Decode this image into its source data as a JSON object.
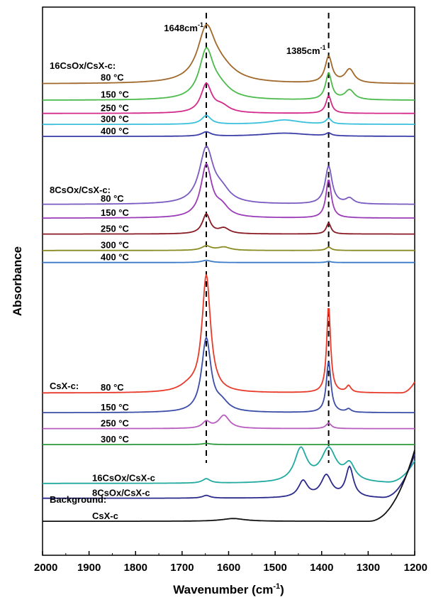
{
  "chart_data": {
    "type": "line",
    "xlabel": "Wavenumber (cm",
    "xlabel_sup": "-1",
    "xlabel_tail": ")",
    "ylabel": "Absorbance",
    "xlim": [
      2000,
      1200
    ],
    "x_reversed": true,
    "x_ticks": [
      2000,
      1900,
      1800,
      1700,
      1600,
      1500,
      1400,
      1300,
      1200
    ],
    "y_ticks_shown": false,
    "grid": false,
    "reference_lines": [
      {
        "x": 1648,
        "label": "1648cm",
        "sup": "-1"
      },
      {
        "x": 1385,
        "label": "1385cm",
        "sup": "-1"
      }
    ],
    "groups": [
      {
        "label": "16CsOx/CsX-c:",
        "series": [
          {
            "name": "80 °C",
            "color": "#a0682a",
            "baseline": 0.86,
            "peaks": [
              {
                "x": 1648,
                "h": 0.089,
                "w": 22
              },
              {
                "x": 1620,
                "h": 0.028,
                "w": 40
              },
              {
                "x": 1385,
                "h": 0.048,
                "w": 9
              },
              {
                "x": 1340,
                "h": 0.025,
                "w": 12
              }
            ]
          },
          {
            "name": "150 °C",
            "color": "#4cba4c",
            "baseline": 0.83,
            "peaks": [
              {
                "x": 1648,
                "h": 0.085,
                "w": 18
              },
              {
                "x": 1620,
                "h": 0.02,
                "w": 30
              },
              {
                "x": 1385,
                "h": 0.048,
                "w": 8
              },
              {
                "x": 1340,
                "h": 0.018,
                "w": 12
              }
            ]
          },
          {
            "name": "250 °C",
            "color": "#d42a8c",
            "baseline": 0.806,
            "peaks": [
              {
                "x": 1648,
                "h": 0.052,
                "w": 14
              },
              {
                "x": 1615,
                "h": 0.012,
                "w": 20
              },
              {
                "x": 1385,
                "h": 0.032,
                "w": 7
              }
            ]
          },
          {
            "name": "300 °C",
            "color": "#3ac0dc",
            "baseline": 0.786,
            "peaks": [
              {
                "x": 1648,
                "h": 0.016,
                "w": 12
              },
              {
                "x": 1480,
                "h": 0.008,
                "w": 40
              },
              {
                "x": 1385,
                "h": 0.01,
                "w": 7
              }
            ]
          },
          {
            "name": "400 °C",
            "color": "#3a3fa8",
            "baseline": 0.764,
            "peaks": [
              {
                "x": 1648,
                "h": 0.008,
                "w": 12
              },
              {
                "x": 1480,
                "h": 0.006,
                "w": 60
              },
              {
                "x": 1385,
                "h": 0.005,
                "w": 7
              }
            ]
          }
        ]
      },
      {
        "label": "8CsOx/CsX-c:",
        "series": [
          {
            "name": "80 °C",
            "color": "#7a5ac0",
            "baseline": 0.64,
            "peaks": [
              {
                "x": 1648,
                "h": 0.1,
                "w": 18
              },
              {
                "x": 1615,
                "h": 0.02,
                "w": 22
              },
              {
                "x": 1385,
                "h": 0.069,
                "w": 9
              },
              {
                "x": 1340,
                "h": 0.01,
                "w": 10
              }
            ]
          },
          {
            "name": "150 °C",
            "color": "#9a3cb8",
            "baseline": 0.615,
            "peaks": [
              {
                "x": 1648,
                "h": 0.095,
                "w": 14
              },
              {
                "x": 1615,
                "h": 0.018,
                "w": 18
              },
              {
                "x": 1385,
                "h": 0.07,
                "w": 7
              }
            ]
          },
          {
            "name": "250 °C",
            "color": "#8a1a24",
            "baseline": 0.586,
            "peaks": [
              {
                "x": 1648,
                "h": 0.036,
                "w": 10
              },
              {
                "x": 1610,
                "h": 0.01,
                "w": 14
              },
              {
                "x": 1385,
                "h": 0.02,
                "w": 6
              }
            ]
          },
          {
            "name": "300 °C",
            "color": "#8a8a22",
            "baseline": 0.556,
            "peaks": [
              {
                "x": 1648,
                "h": 0.008,
                "w": 12
              },
              {
                "x": 1610,
                "h": 0.006,
                "w": 16
              },
              {
                "x": 1385,
                "h": 0.006,
                "w": 7
              }
            ]
          },
          {
            "name": "400 °C",
            "color": "#3a7ac8",
            "baseline": 0.534,
            "peaks": [
              {
                "x": 1648,
                "h": 0.004,
                "w": 12
              },
              {
                "x": 1385,
                "h": 0.002,
                "w": 7
              }
            ]
          }
        ]
      },
      {
        "label": "CsX-c:",
        "series": [
          {
            "name": "80 °C",
            "color": "#e83a2a",
            "baseline": 0.296,
            "peaks": [
              {
                "x": 1648,
                "h": 0.213,
                "w": 11
              },
              {
                "x": 1685,
                "h": 0.01,
                "w": 25
              },
              {
                "x": 1385,
                "h": 0.159,
                "w": 5
              },
              {
                "x": 1342,
                "h": 0.012,
                "w": 6
              }
            ],
            "end_rise": {
              "start": 1230,
              "h": 0.02
            }
          },
          {
            "name": "150 °C",
            "color": "#3a4ea8",
            "baseline": 0.26,
            "peaks": [
              {
                "x": 1648,
                "h": 0.134,
                "w": 12
              },
              {
                "x": 1615,
                "h": 0.015,
                "w": 18
              },
              {
                "x": 1385,
                "h": 0.093,
                "w": 6
              },
              {
                "x": 1342,
                "h": 0.006,
                "w": 6
              }
            ]
          },
          {
            "name": "250 °C",
            "color": "#b85cc0",
            "baseline": 0.231,
            "peaks": [
              {
                "x": 1648,
                "h": 0.012,
                "w": 10
              },
              {
                "x": 1610,
                "h": 0.024,
                "w": 14
              },
              {
                "x": 1385,
                "h": 0.01,
                "w": 7
              }
            ]
          },
          {
            "name": "300 °C",
            "color": "#2a9a3a",
            "baseline": 0.202,
            "peaks": [
              {
                "x": 1648,
                "h": 0.002,
                "w": 10
              }
            ]
          }
        ]
      },
      {
        "label": "Background:",
        "series": [
          {
            "name": "16CsOx/CsX-c",
            "color": "#20aaa0",
            "baseline": 0.131,
            "peaks": [
              {
                "x": 1648,
                "h": 0.008,
                "w": 10
              },
              {
                "x": 1445,
                "h": 0.06,
                "w": 16
              },
              {
                "x": 1385,
                "h": 0.06,
                "w": 20
              },
              {
                "x": 1340,
                "h": 0.03,
                "w": 14
              }
            ],
            "end_rise": {
              "start": 1260,
              "h": 0.04
            }
          },
          {
            "name": "8CsOx/CsX-c",
            "color": "#2a2a8a",
            "baseline": 0.104,
            "peaks": [
              {
                "x": 1648,
                "h": 0.005,
                "w": 10
              },
              {
                "x": 1440,
                "h": 0.03,
                "w": 12
              },
              {
                "x": 1390,
                "h": 0.04,
                "w": 14
              },
              {
                "x": 1340,
                "h": 0.055,
                "w": 10
              }
            ],
            "end_rise": {
              "start": 1270,
              "h": 0.08
            }
          },
          {
            "name": "CsX-c",
            "color": "#111111",
            "baseline": 0.062,
            "peaks": [
              {
                "x": 1590,
                "h": 0.005,
                "w": 30
              }
            ],
            "end_rise": {
              "start": 1300,
              "h": 0.13
            }
          }
        ]
      }
    ]
  }
}
